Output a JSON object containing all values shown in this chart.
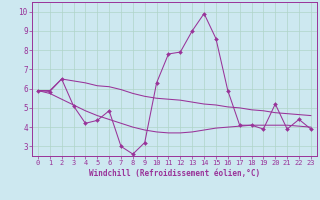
{
  "xlabel": "Windchill (Refroidissement éolien,°C)",
  "background_color": "#cde8f0",
  "grid_color": "#b0d4c8",
  "line_color": "#993399",
  "spine_color": "#993399",
  "x_data": [
    0,
    1,
    2,
    3,
    4,
    5,
    6,
    7,
    8,
    9,
    10,
    11,
    12,
    13,
    14,
    15,
    16,
    17,
    18,
    19,
    20,
    21,
    22,
    23
  ],
  "y_main": [
    5.9,
    5.85,
    6.5,
    5.1,
    4.2,
    4.35,
    4.85,
    3.0,
    2.6,
    3.2,
    6.3,
    7.8,
    7.9,
    9.0,
    9.9,
    8.6,
    5.9,
    4.1,
    4.1,
    3.9,
    5.2,
    3.9,
    4.4,
    3.9
  ],
  "y_upper": [
    5.9,
    5.9,
    6.5,
    6.4,
    6.3,
    6.15,
    6.1,
    5.95,
    5.75,
    5.6,
    5.5,
    5.45,
    5.4,
    5.3,
    5.2,
    5.15,
    5.05,
    5.0,
    4.9,
    4.85,
    4.75,
    4.7,
    4.65,
    4.6
  ],
  "y_lower": [
    5.9,
    5.75,
    5.45,
    5.15,
    4.85,
    4.6,
    4.4,
    4.2,
    4.0,
    3.85,
    3.75,
    3.7,
    3.7,
    3.75,
    3.85,
    3.95,
    4.0,
    4.05,
    4.1,
    4.1,
    4.1,
    4.1,
    4.05,
    4.0
  ],
  "ylim": [
    2.5,
    10.5
  ],
  "xlim": [
    -0.5,
    23.5
  ],
  "yticks": [
    3,
    4,
    5,
    6,
    7,
    8,
    9,
    10
  ],
  "xticks": [
    0,
    1,
    2,
    3,
    4,
    5,
    6,
    7,
    8,
    9,
    10,
    11,
    12,
    13,
    14,
    15,
    16,
    17,
    18,
    19,
    20,
    21,
    22,
    23
  ],
  "tick_fontsize": 5.0,
  "xlabel_fontsize": 5.5,
  "linewidth": 0.75,
  "markersize": 2.0
}
